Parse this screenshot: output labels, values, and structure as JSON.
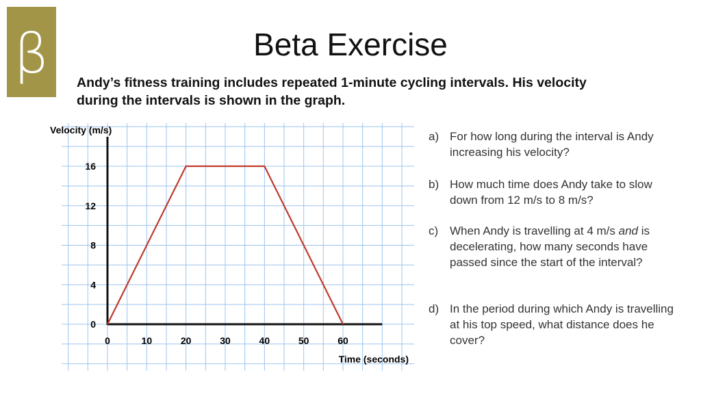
{
  "logo": {
    "symbol": "β",
    "color": "#a39548"
  },
  "title": "Beta Exercise",
  "intro": "Andy’s fitness training includes repeated 1-minute cycling intervals. His velocity during the intervals is shown in the graph.",
  "chart_data": {
    "type": "line",
    "xlabel": "Time (seconds)",
    "ylabel": "Velocity (m/s)",
    "x_ticks": [
      0,
      10,
      20,
      30,
      40,
      50,
      60
    ],
    "y_ticks": [
      0,
      4,
      8,
      12,
      16
    ],
    "xlim": [
      0,
      70
    ],
    "ylim": [
      0,
      18
    ],
    "grid": true,
    "series": [
      {
        "x": [
          0,
          20,
          40,
          60
        ],
        "y": [
          0,
          16,
          16,
          0
        ],
        "color": "#c0392b"
      }
    ],
    "grid_color": "#9cc4f0"
  },
  "questions": [
    {
      "label": "a)",
      "text": "For how long during the interval is Andy increasing his velocity?"
    },
    {
      "label": "b)",
      "text": "How much time does Andy take to slow down from 12 m/s to 8 m/s?"
    },
    {
      "label": "c)",
      "text_html_parts": [
        "When Andy is travelling at 4 m/s ",
        "and",
        " is decelerating, how many seconds have passed since the start of the interval?"
      ]
    },
    {
      "label": "d)",
      "text": "In the period during which Andy is travelling at his top speed, what distance does he cover?"
    }
  ]
}
